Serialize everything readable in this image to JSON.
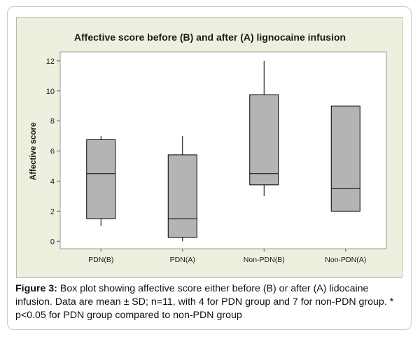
{
  "chart_data": {
    "type": "box",
    "title": "Affective score before (B) and after (A) lignocaine infusion",
    "xlabel": "",
    "ylabel": "Affective score",
    "ylim": [
      -0.5,
      12.6
    ],
    "yticks": [
      0,
      2,
      4,
      6,
      8,
      10,
      12
    ],
    "categories": [
      "PDN(B)",
      "PDN(A)",
      "Non-PDN(B)",
      "Non-PDN(A)"
    ],
    "boxes": [
      {
        "min": 1.0,
        "q1": 1.5,
        "median": 4.5,
        "q3": 6.75,
        "max": 7.0
      },
      {
        "min": 0.0,
        "q1": 0.25,
        "median": 1.5,
        "q3": 5.75,
        "max": 7.0
      },
      {
        "min": 3.0,
        "q1": 3.75,
        "median": 4.5,
        "q3": 9.75,
        "max": 12.0
      },
      {
        "min": 2.0,
        "q1": 2.0,
        "median": 3.5,
        "q3": 9.0,
        "max": 9.0
      }
    ],
    "box_color": "#b4b4b4",
    "plot_bg": "#ffffff",
    "outer_bg": "#efefdf",
    "grid": false
  },
  "caption": {
    "label": "Figure 3:",
    "text": "Box plot showing affective score either before (B) or after (A) lidocaine infusion. Data are mean ± SD; n=11, with 4 for PDN group and 7 for non-PDN group. * p<0.05 for PDN group compared to non-PDN group"
  }
}
